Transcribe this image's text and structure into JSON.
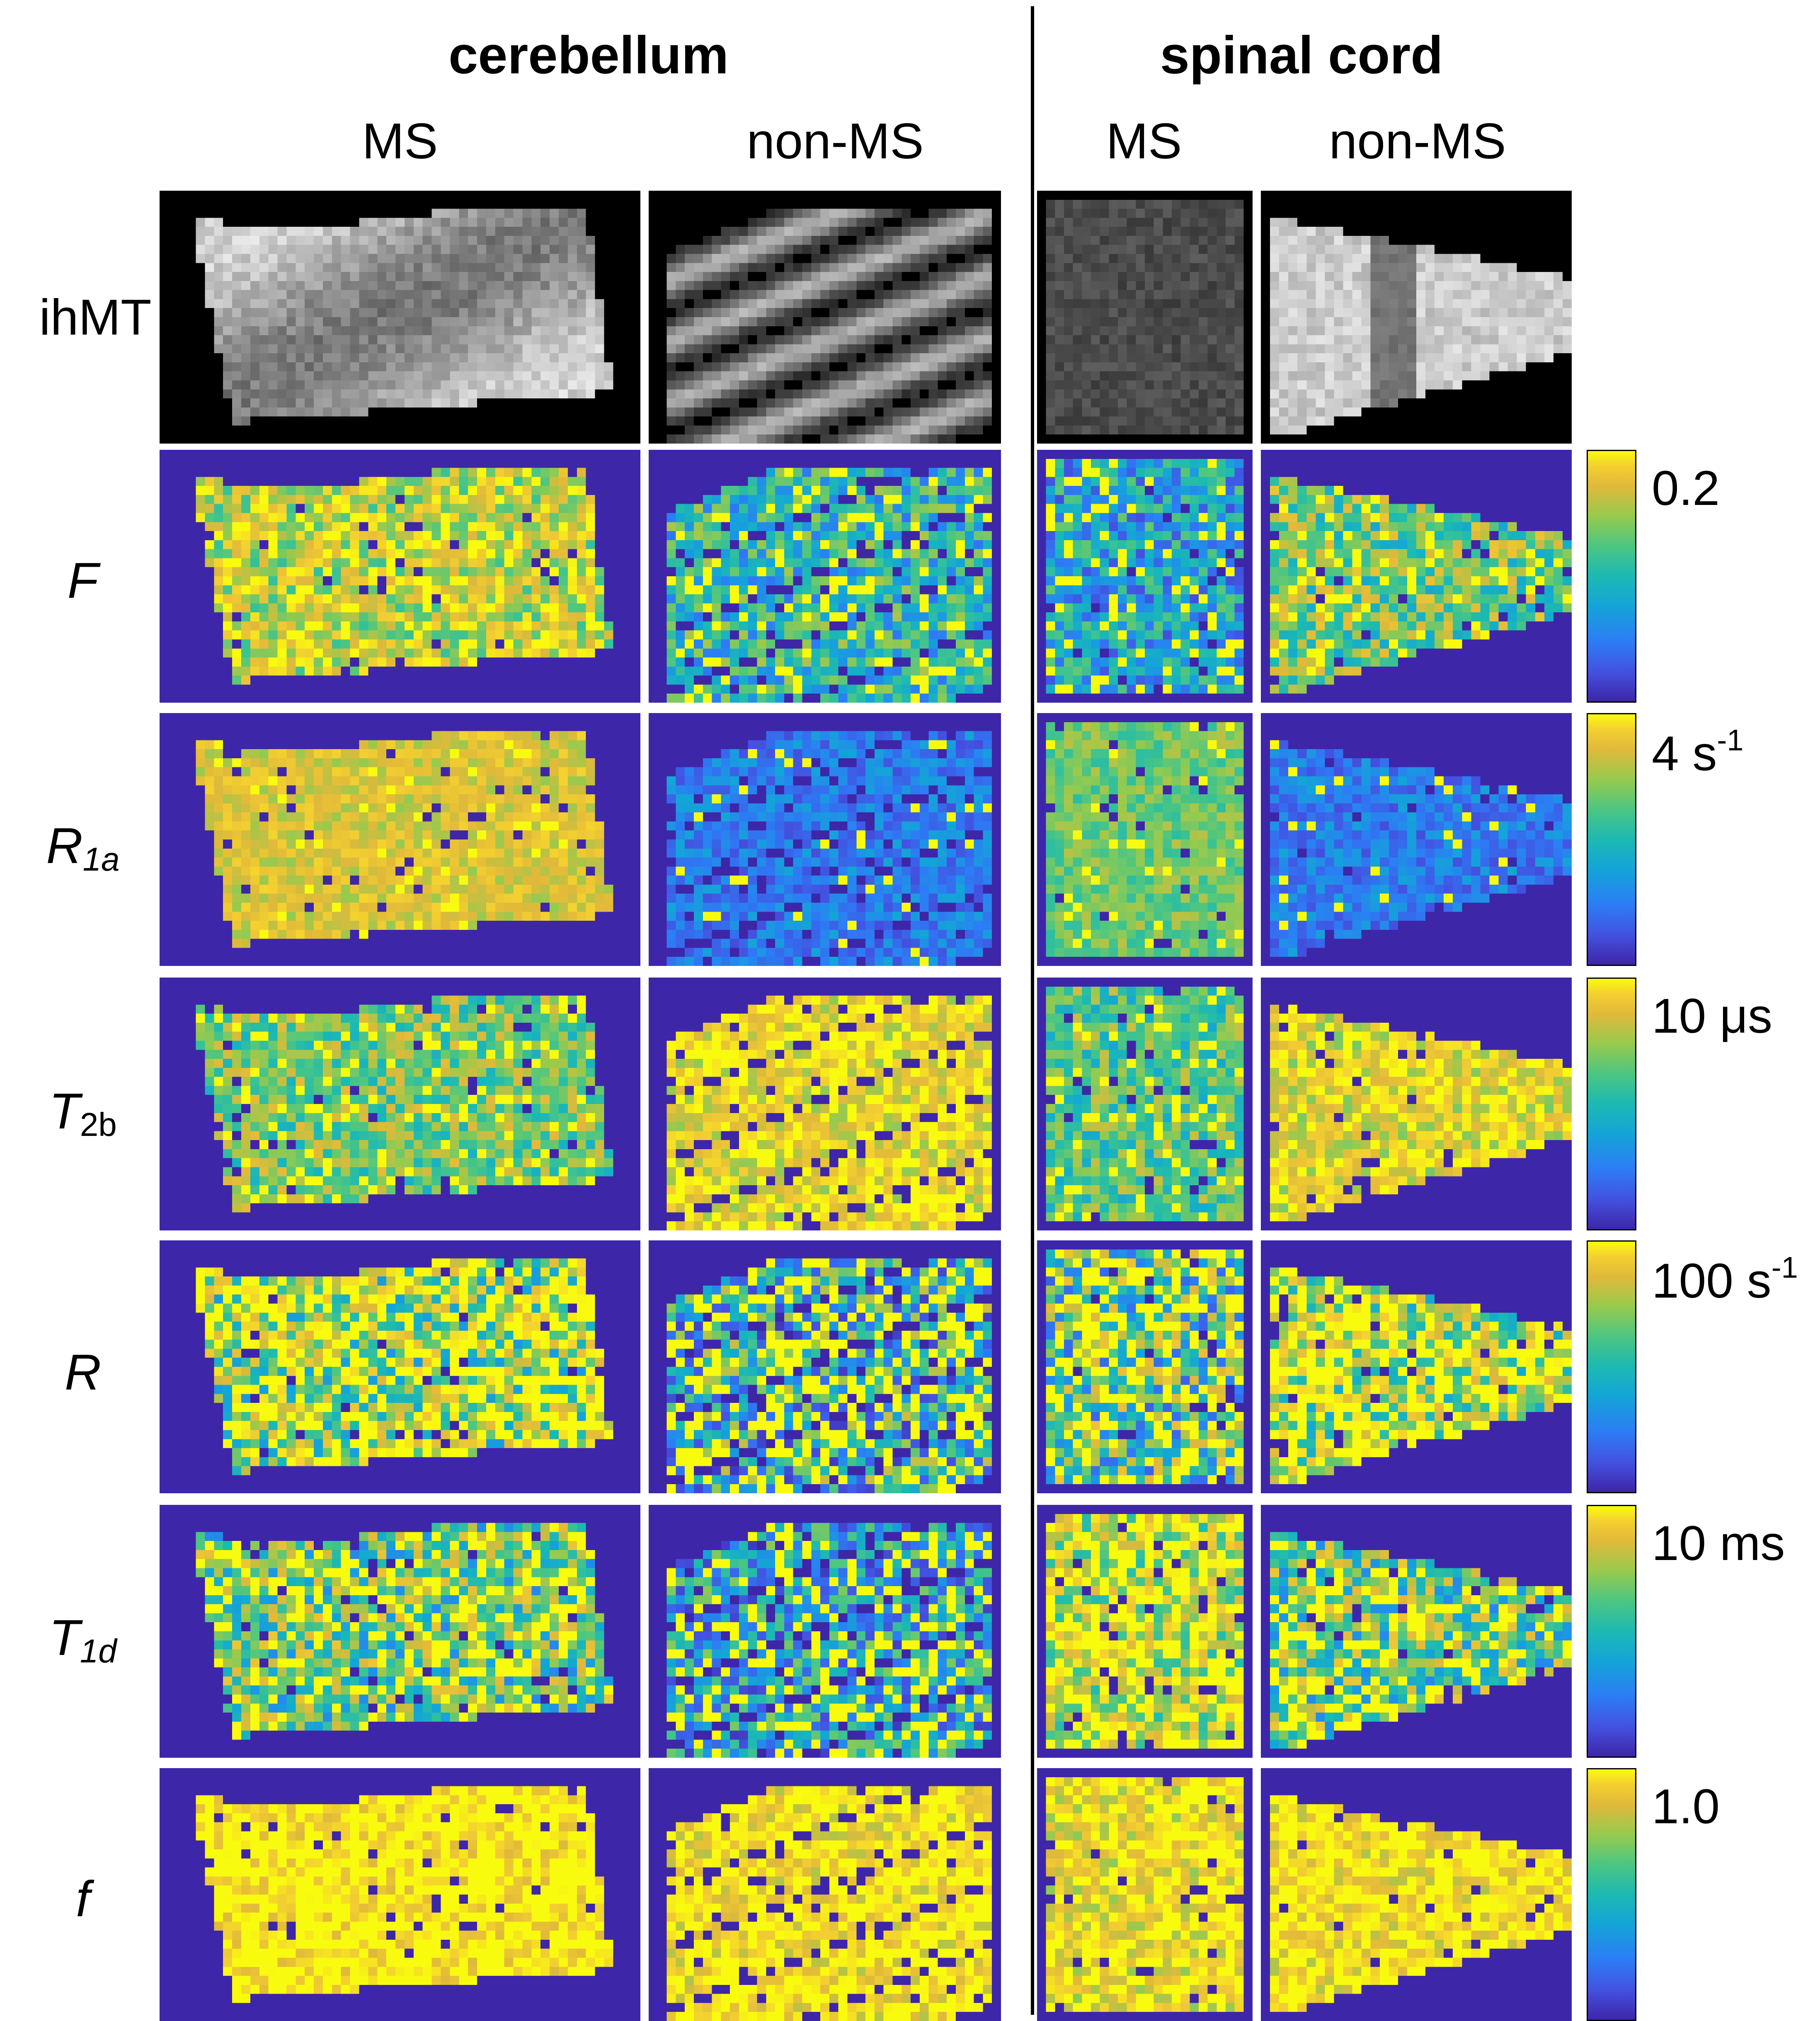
{
  "groups": {
    "cerebellum": "cerebellum",
    "spinal_cord": "spinal cord"
  },
  "columns": [
    "MS",
    "non-MS",
    "MS",
    "non-MS"
  ],
  "rows": [
    {
      "symbol": "ihMT",
      "sub": "",
      "italic": false,
      "sub_italic": false,
      "colorbar_label": "",
      "colorbar_sup": ""
    },
    {
      "symbol": "F",
      "sub": "",
      "italic": true,
      "sub_italic": false,
      "colorbar_label": "0.2",
      "colorbar_sup": ""
    },
    {
      "symbol": "R",
      "sub": "1a",
      "italic": true,
      "sub_italic": true,
      "colorbar_label": "4 s",
      "colorbar_sup": "-1"
    },
    {
      "symbol": "T",
      "sub": "2b",
      "italic": true,
      "sub_italic": false,
      "colorbar_label": "10 μs",
      "colorbar_sup": ""
    },
    {
      "symbol": "R",
      "sub": "",
      "italic": true,
      "sub_italic": false,
      "colorbar_label": "100 s",
      "colorbar_sup": "-1"
    },
    {
      "symbol": "T",
      "sub": "1d",
      "italic": true,
      "sub_italic": true,
      "colorbar_label": "10 ms",
      "colorbar_sup": ""
    },
    {
      "symbol": "f",
      "sub": "",
      "italic": true,
      "sub_italic": false,
      "colorbar_label": "1.0",
      "colorbar_sup": ""
    }
  ],
  "colormap": {
    "name": "parula",
    "background": "#3e26a8",
    "stops": [
      "#3e26a8",
      "#4352e0",
      "#2c7df5",
      "#14a4d8",
      "#1cb9b3",
      "#4cc682",
      "#97ca4e",
      "#e1b93a",
      "#f3d030",
      "#f9fb0e"
    ]
  }
}
